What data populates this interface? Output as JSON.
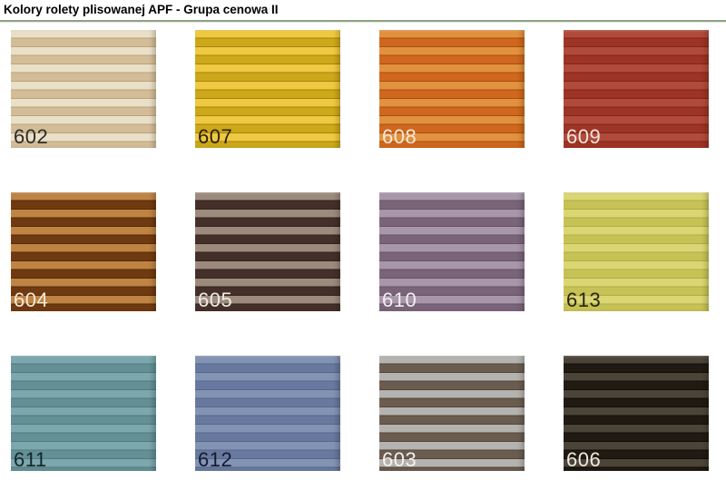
{
  "page": {
    "title": "Kolory rolety plisowanej APF - Grupa cenowa II",
    "divider_color": "#8fa187",
    "background_color": "#ffffff"
  },
  "swatches": [
    {
      "code": "602",
      "colors": {
        "light": "#eae0c8",
        "dark": "#d3bd98",
        "fold": "#bba379"
      },
      "label_color": "#2b2b28"
    },
    {
      "code": "607",
      "colors": {
        "light": "#eec941",
        "dark": "#cda81a",
        "fold": "#a3850c"
      },
      "label_color": "#2a2108"
    },
    {
      "code": "608",
      "colors": {
        "light": "#e2913f",
        "dark": "#cf671e",
        "fold": "#a84e11"
      },
      "label_color": "#f4e9da"
    },
    {
      "code": "609",
      "colors": {
        "light": "#b04b3b",
        "dark": "#9d3425",
        "fold": "#802619"
      },
      "label_color": "#f3e4dc"
    },
    {
      "code": "604",
      "colors": {
        "light": "#bf8343",
        "dark": "#6f3a11",
        "fold": "#552b0a"
      },
      "label_color": "#f5ead8"
    },
    {
      "code": "605",
      "colors": {
        "light": "#9c8b7c",
        "dark": "#443029",
        "fold": "#30221e"
      },
      "label_color": "#f0ebe4"
    },
    {
      "code": "610",
      "colors": {
        "light": "#a897aa",
        "dark": "#7a6479",
        "fold": "#675465"
      },
      "label_color": "#f2eef2"
    },
    {
      "code": "613",
      "colors": {
        "light": "#dad673",
        "dark": "#c7c256",
        "fold": "#b2ad45"
      },
      "label_color": "#26250f"
    },
    {
      "code": "611",
      "colors": {
        "light": "#7ca7ac",
        "dark": "#629095",
        "fold": "#52797f"
      },
      "label_color": "#15262a"
    },
    {
      "code": "612",
      "colors": {
        "light": "#8393b3",
        "dark": "#68799f",
        "fold": "#56678d"
      },
      "label_color": "#131c30"
    },
    {
      "code": "603",
      "colors": {
        "light": "#b5b3af",
        "dark": "#6a5d4f",
        "fold": "#51463a"
      },
      "label_color": "#f3f1ec"
    },
    {
      "code": "606",
      "colors": {
        "light": "#4b4539",
        "dark": "#201a12",
        "fold": "#110d08"
      },
      "label_color": "#efe9e0"
    }
  ]
}
